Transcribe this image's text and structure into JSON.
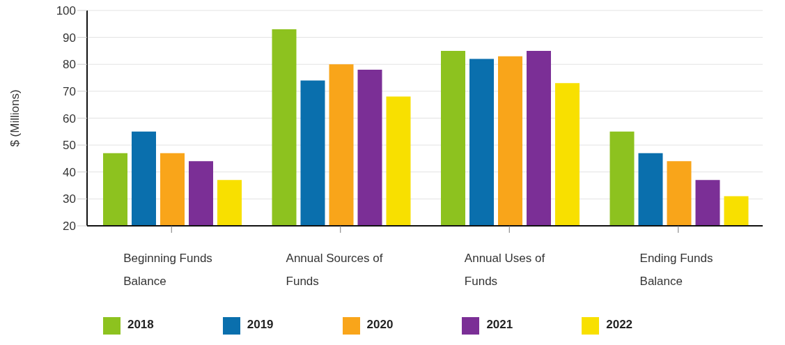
{
  "chart_data": {
    "type": "bar",
    "ylabel": "$ (Millions)",
    "categories": [
      "Beginning Funds Balance",
      "Annual Sources of Funds",
      "Annual Uses of Funds",
      "Ending Funds Balance"
    ],
    "series": [
      {
        "name": "2018",
        "color": "#8dc21f",
        "values": [
          47,
          93,
          85,
          55
        ]
      },
      {
        "name": "2019",
        "color": "#0a6fad",
        "values": [
          55,
          74,
          82,
          47
        ]
      },
      {
        "name": "2020",
        "color": "#f9a51a",
        "values": [
          47,
          80,
          83,
          44
        ]
      },
      {
        "name": "2021",
        "color": "#7b2f96",
        "values": [
          44,
          78,
          85,
          37
        ]
      },
      {
        "name": "2022",
        "color": "#f8e000",
        "values": [
          37,
          68,
          73,
          31
        ]
      }
    ],
    "ylim": [
      20,
      100
    ],
    "yticks": [
      20,
      30,
      40,
      50,
      60,
      70,
      80,
      90,
      100
    ],
    "grid": "y",
    "legend": "bottom"
  }
}
